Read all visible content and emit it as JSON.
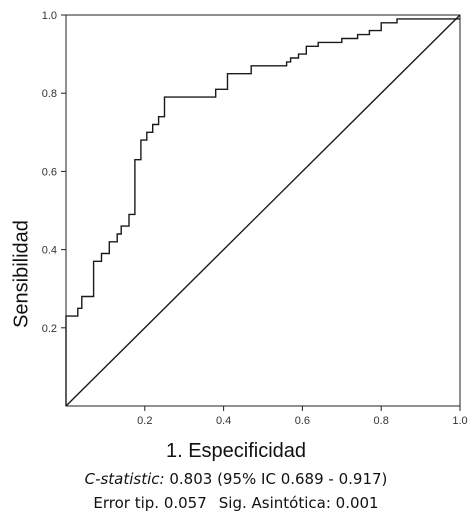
{
  "chart_data": {
    "type": "line",
    "xlabel": "1. Especificidad",
    "ylabel": "Sensibilidad",
    "xlim": [
      0,
      1
    ],
    "ylim": [
      0,
      1
    ],
    "x_ticks": [
      "0.2",
      "0.4",
      "0.6",
      "0.8",
      "1.0"
    ],
    "y_ticks": [
      "0.2",
      "0.4",
      "0.6",
      "0.8",
      "1.0"
    ],
    "grid": false,
    "legend": "none",
    "series": [
      {
        "x": [
          0.0,
          0.0,
          0.03,
          0.03,
          0.04,
          0.04,
          0.07,
          0.07,
          0.09,
          0.09,
          0.11,
          0.11,
          0.13,
          0.13,
          0.14,
          0.14,
          0.16,
          0.16,
          0.175,
          0.175,
          0.19,
          0.19,
          0.205,
          0.205,
          0.22,
          0.22,
          0.235,
          0.235,
          0.25,
          0.25,
          0.28,
          0.28,
          0.38,
          0.38,
          0.41,
          0.41,
          0.47,
          0.47,
          0.56,
          0.56,
          0.57,
          0.57,
          0.59,
          0.59,
          0.61,
          0.61,
          0.64,
          0.64,
          0.7,
          0.7,
          0.74,
          0.74,
          0.77,
          0.77,
          0.8,
          0.8,
          0.84,
          0.84,
          0.89,
          0.89,
          1.0
        ],
        "y": [
          0.0,
          0.23,
          0.23,
          0.25,
          0.25,
          0.28,
          0.28,
          0.37,
          0.37,
          0.39,
          0.39,
          0.42,
          0.42,
          0.44,
          0.44,
          0.46,
          0.46,
          0.49,
          0.49,
          0.63,
          0.63,
          0.68,
          0.68,
          0.7,
          0.7,
          0.72,
          0.72,
          0.74,
          0.74,
          0.79,
          0.79,
          0.79,
          0.79,
          0.81,
          0.81,
          0.85,
          0.85,
          0.87,
          0.87,
          0.88,
          0.88,
          0.89,
          0.89,
          0.9,
          0.9,
          0.92,
          0.92,
          0.93,
          0.93,
          0.94,
          0.94,
          0.95,
          0.95,
          0.96,
          0.96,
          0.98,
          0.98,
          0.99,
          0.99,
          0.99,
          0.99
        ]
      },
      {
        "x": [
          0,
          1
        ],
        "y": [
          0,
          1
        ]
      }
    ]
  },
  "stats": {
    "cstat_label": "C-statistic:",
    "cstat_value": " 0.803 (95% IC 0.689 - 0.917)",
    "error_text": "Error tip. 0.057",
    "sig_text": "Sig. Asintótica: 0.001"
  }
}
